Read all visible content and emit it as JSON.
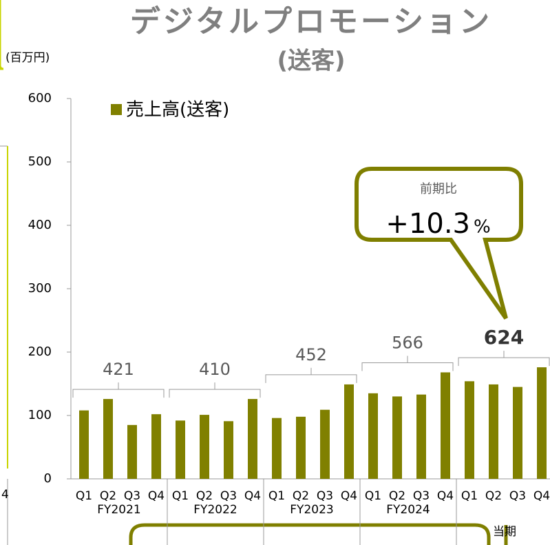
{
  "chart_data": {
    "type": "bar",
    "title": "デジタルプロモーション",
    "subtitle": "(送客)",
    "unit_label": "(百万円)",
    "left_fragment": "4",
    "categories": [
      "Q1",
      "Q2",
      "Q3",
      "Q4",
      "Q1",
      "Q2",
      "Q3",
      "Q4",
      "Q1",
      "Q2",
      "Q3",
      "Q4",
      "Q1",
      "Q2",
      "Q3",
      "Q4",
      "Q1",
      "Q2",
      "Q3",
      "Q4"
    ],
    "groups": [
      "FY2021",
      "FY2022",
      "FY2023",
      "FY2024",
      "当期"
    ],
    "group_totals": [
      421,
      410,
      452,
      566,
      624
    ],
    "series": [
      {
        "name": "売上高(送客)",
        "color": "#808000",
        "values": [
          108,
          126,
          85,
          102,
          92,
          101,
          91,
          126,
          96,
          98,
          109,
          149,
          135,
          130,
          133,
          168,
          154,
          149,
          145,
          176
        ]
      }
    ],
    "ylim": [
      0,
      600
    ],
    "yticks": [
      0,
      100,
      200,
      300,
      400,
      500,
      600
    ],
    "callout": {
      "title": "前期比",
      "value": "+10.3",
      "unit": "%"
    }
  }
}
